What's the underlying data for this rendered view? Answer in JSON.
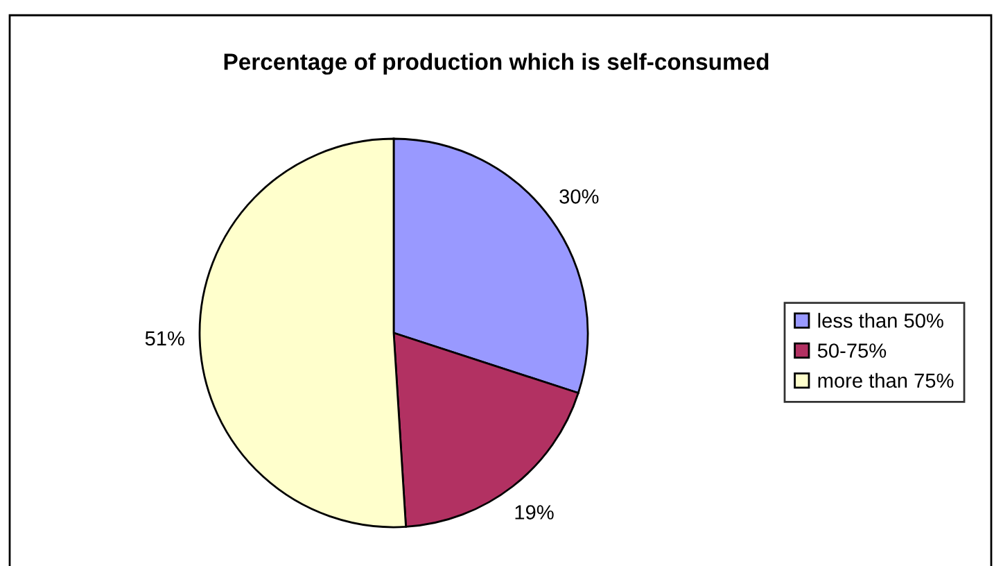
{
  "chart_data": {
    "type": "pie",
    "title": "Percentage of production which is self-consumed",
    "categories": [
      "less than 50%",
      "50-75%",
      "more than 75%"
    ],
    "values": [
      30,
      19,
      51
    ],
    "colors": [
      "#9999ff",
      "#b23162",
      "#ffffcc"
    ],
    "value_labels": [
      "30%",
      "19%",
      "51%"
    ],
    "legend": "right"
  }
}
